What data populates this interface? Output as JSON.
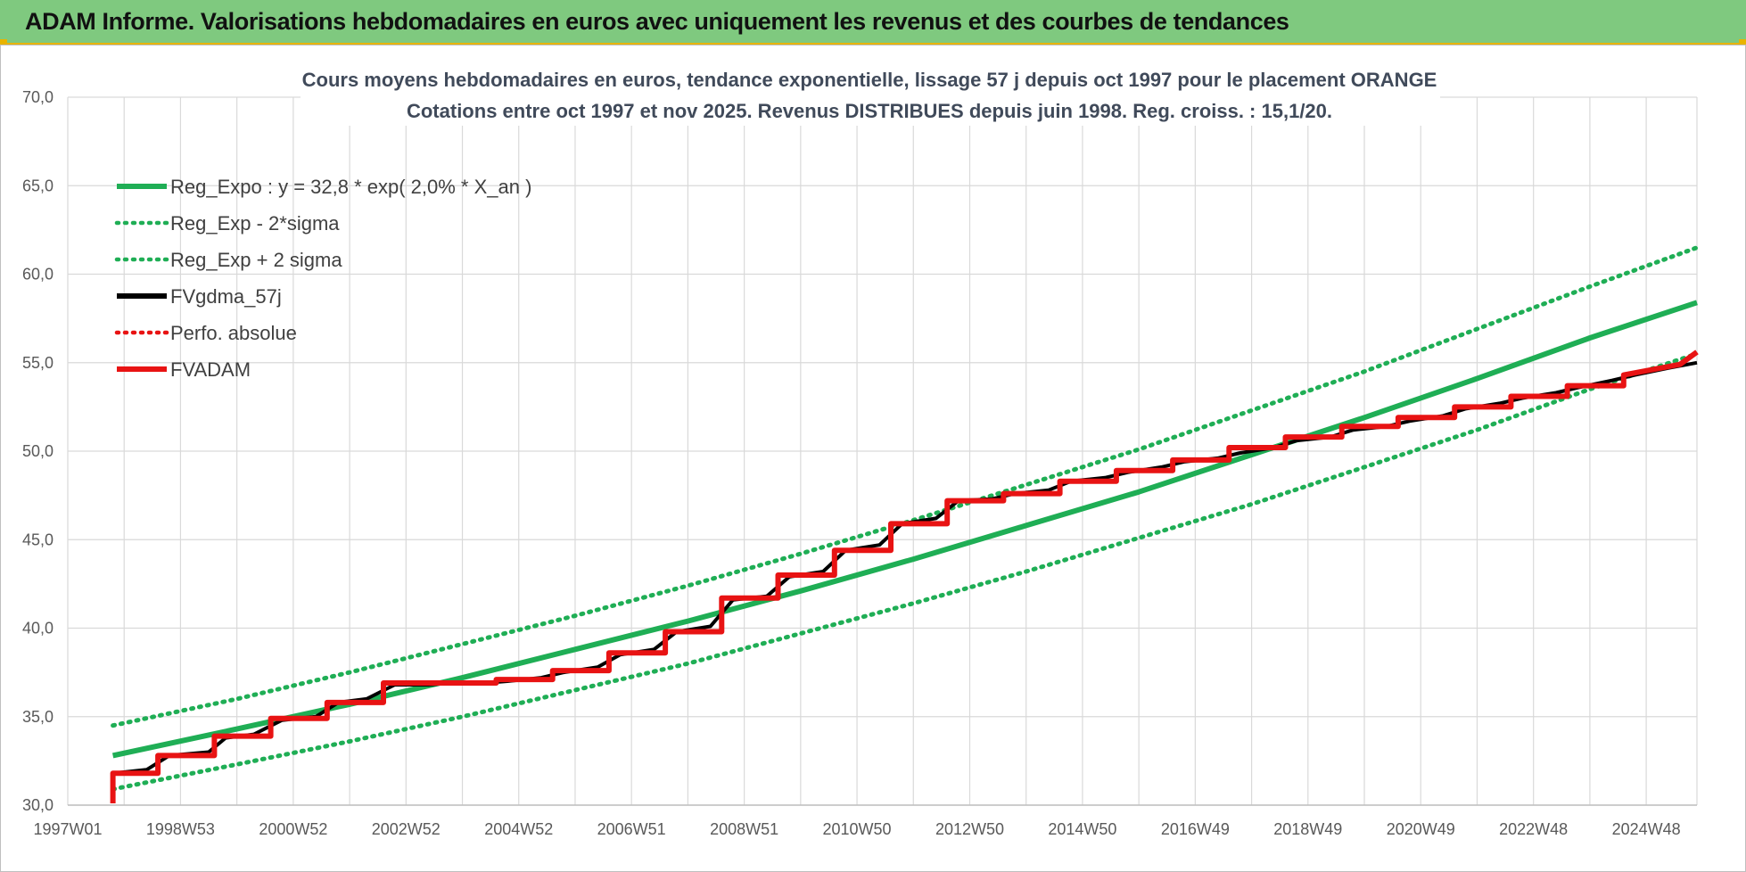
{
  "banner": {
    "title": "ADAM Informe. Valorisations hebdomadaires en euros avec uniquement les revenus et des courbes de tendances"
  },
  "colors": {
    "banner_bg": "#7fc97f",
    "green": "#1fae55",
    "red": "#e81313",
    "black": "#000000",
    "grid": "#d9d9d9"
  },
  "chart_data": {
    "type": "line",
    "title": "Cours moyens hebdomadaires en euros, tendance exponentielle, lissage 57 j depuis oct 1997 pour le placement ORANGE",
    "subtitle": "Cotations entre oct 1997 et nov 2025. Revenus DISTRIBUES depuis juin 1998. Reg. croiss. : 15,1/20.",
    "xlabel": "",
    "ylabel": "",
    "ylim": [
      30,
      70
    ],
    "xlim": [
      1997.0,
      2025.9
    ],
    "grid": true,
    "legend_position": "top-left",
    "y_ticks": [
      "30,0",
      "35,0",
      "40,0",
      "45,0",
      "50,0",
      "55,0",
      "60,0",
      "65,0",
      "70,0"
    ],
    "x_ticks": [
      {
        "label": "1997W01",
        "x": 1997.0
      },
      {
        "label": "1998W53",
        "x": 1999.0
      },
      {
        "label": "2000W52",
        "x": 2001.0
      },
      {
        "label": "2002W52",
        "x": 2003.0
      },
      {
        "label": "2004W52",
        "x": 2005.0
      },
      {
        "label": "2006W51",
        "x": 2007.0
      },
      {
        "label": "2008W51",
        "x": 2009.0
      },
      {
        "label": "2010W50",
        "x": 2011.0
      },
      {
        "label": "2012W50",
        "x": 2013.0
      },
      {
        "label": "2014W50",
        "x": 2015.0
      },
      {
        "label": "2016W49",
        "x": 2017.0
      },
      {
        "label": "2018W49",
        "x": 2019.0
      },
      {
        "label": "2020W49",
        "x": 2021.0
      },
      {
        "label": "2022W48",
        "x": 2023.0
      },
      {
        "label": "2024W48",
        "x": 2025.0
      }
    ],
    "series": [
      {
        "name": "Reg_Expo : y = 32,8 * exp( 2,0% *  X_an )",
        "style": "solid",
        "color": "#1fae55",
        "x": [
          1997.8,
          2000,
          2002,
          2004,
          2006,
          2008,
          2010,
          2012,
          2014,
          2016,
          2018,
          2020,
          2022,
          2024,
          2025.9
        ],
        "y": [
          32.8,
          34.3,
          35.7,
          37.2,
          38.8,
          40.4,
          42.1,
          43.9,
          45.8,
          47.7,
          49.8,
          51.9,
          54.1,
          56.4,
          58.4
        ]
      },
      {
        "name": "Reg_Exp - 2*sigma",
        "style": "dotted",
        "color": "#1fae55",
        "x": [
          1997.8,
          2000,
          2002,
          2004,
          2006,
          2008,
          2010,
          2012,
          2014,
          2016,
          2018,
          2020,
          2022,
          2024,
          2025.9
        ],
        "y": [
          30.9,
          32.3,
          33.6,
          35.0,
          36.5,
          38.0,
          39.7,
          41.4,
          43.2,
          45.1,
          47.0,
          49.1,
          51.2,
          53.5,
          55.5
        ]
      },
      {
        "name": "Reg_Exp + 2 sigma",
        "style": "dotted",
        "color": "#1fae55",
        "x": [
          1997.8,
          2000,
          2002,
          2004,
          2006,
          2008,
          2010,
          2012,
          2014,
          2016,
          2018,
          2020,
          2022,
          2024,
          2025.9
        ],
        "y": [
          34.5,
          36.0,
          37.5,
          39.1,
          40.7,
          42.4,
          44.2,
          46.1,
          48.1,
          50.1,
          52.3,
          54.5,
          56.9,
          59.3,
          61.5
        ]
      },
      {
        "name": "FVgdma_57j",
        "style": "solid",
        "color": "#000000",
        "x": [
          1997.8,
          1997.8,
          1998.4,
          1998.8,
          1999.5,
          1999.8,
          2000.3,
          2000.8,
          2001.4,
          2001.8,
          2002.3,
          2002.8,
          2003.4,
          2003.8,
          2004.4,
          2004.8,
          2005.4,
          2005.8,
          2006.4,
          2006.8,
          2007.4,
          2007.8,
          2008.4,
          2008.8,
          2009.4,
          2009.8,
          2010.4,
          2010.8,
          2011.4,
          2011.8,
          2012.4,
          2012.8,
          2013.4,
          2013.8,
          2014.4,
          2014.8,
          2015.4,
          2015.8,
          2016.4,
          2016.8,
          2017.4,
          2017.8,
          2018.4,
          2018.8,
          2019.4,
          2019.8,
          2020.4,
          2020.8,
          2021.4,
          2021.8,
          2022.4,
          2022.8,
          2023.4,
          2023.8,
          2024.4,
          2024.8,
          2025.4,
          2025.9
        ],
        "y": [
          30.1,
          31.8,
          32.0,
          32.8,
          33.0,
          33.8,
          34.0,
          34.8,
          35.0,
          35.8,
          36.0,
          36.8,
          36.8,
          36.9,
          36.9,
          37.0,
          37.2,
          37.5,
          37.8,
          38.5,
          38.8,
          39.8,
          40.1,
          41.6,
          41.8,
          42.9,
          43.2,
          44.4,
          44.7,
          45.9,
          46.2,
          47.2,
          47.3,
          47.6,
          47.8,
          48.3,
          48.5,
          48.8,
          49.1,
          49.4,
          49.6,
          49.9,
          50.2,
          50.6,
          50.8,
          51.2,
          51.4,
          51.7,
          52.0,
          52.4,
          52.7,
          53.0,
          53.3,
          53.6,
          54.0,
          54.3,
          54.7,
          55.0
        ]
      },
      {
        "name": "Perfo. absolue",
        "style": "dotted",
        "color": "#e81313",
        "x": [],
        "y": []
      },
      {
        "name": "FVADAM",
        "style": "solid",
        "color": "#e81313",
        "x": [
          1997.8,
          1997.8,
          1998.6,
          1998.6,
          1999.6,
          1999.6,
          2000.6,
          2000.6,
          2001.6,
          2001.6,
          2002.6,
          2002.6,
          2003.6,
          2003.6,
          2004.6,
          2004.6,
          2005.6,
          2005.6,
          2006.6,
          2006.6,
          2007.6,
          2007.6,
          2008.6,
          2008.6,
          2009.6,
          2009.6,
          2010.6,
          2010.6,
          2011.6,
          2011.6,
          2012.6,
          2012.6,
          2013.6,
          2013.6,
          2014.6,
          2014.6,
          2015.6,
          2015.6,
          2016.6,
          2016.6,
          2017.6,
          2017.6,
          2018.6,
          2018.6,
          2019.6,
          2019.6,
          2020.6,
          2020.6,
          2021.6,
          2021.6,
          2022.6,
          2022.6,
          2023.6,
          2023.6,
          2024.6,
          2024.6,
          2025.6,
          2025.9
        ],
        "y": [
          30.1,
          31.8,
          31.8,
          32.8,
          32.8,
          33.9,
          33.9,
          34.9,
          34.9,
          35.8,
          35.8,
          36.9,
          36.9,
          36.9,
          36.9,
          37.1,
          37.1,
          37.6,
          37.6,
          38.6,
          38.6,
          39.8,
          39.8,
          41.7,
          41.7,
          43.0,
          43.0,
          44.4,
          44.4,
          45.9,
          45.9,
          47.2,
          47.2,
          47.6,
          47.6,
          48.3,
          48.3,
          48.9,
          48.9,
          49.5,
          49.5,
          50.2,
          50.2,
          50.8,
          50.8,
          51.4,
          51.4,
          51.9,
          51.9,
          52.5,
          52.5,
          53.1,
          53.1,
          53.7,
          53.7,
          54.3,
          54.9,
          55.6
        ]
      }
    ]
  }
}
